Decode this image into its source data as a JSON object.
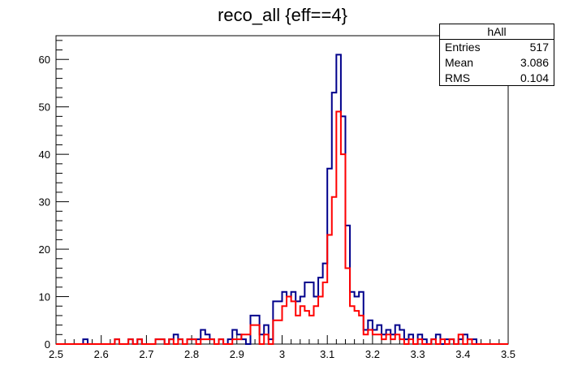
{
  "chart_data": {
    "type": "histogram",
    "title": "reco_all {eff==4}",
    "xlim": [
      2.5,
      3.5
    ],
    "ylim": [
      0,
      65
    ],
    "bin_width": 0.01,
    "x_ticks": [
      "2.5",
      "2.6",
      "2.7",
      "2.8",
      "2.9",
      "3",
      "3.1",
      "3.2",
      "3.3",
      "3.4",
      "3.5"
    ],
    "y_ticks": [
      "0",
      "10",
      "20",
      "30",
      "40",
      "50",
      "60"
    ],
    "colors": {
      "blue": "#00008b",
      "red": "#ff0000"
    },
    "series": [
      {
        "color": "#00008b",
        "bins": [
          {
            "x": 2.56,
            "y": 1
          },
          {
            "x": 2.63,
            "y": 1
          },
          {
            "x": 2.66,
            "y": 1
          },
          {
            "x": 2.68,
            "y": 1
          },
          {
            "x": 2.72,
            "y": 1
          },
          {
            "x": 2.73,
            "y": 1
          },
          {
            "x": 2.75,
            "y": 1
          },
          {
            "x": 2.76,
            "y": 2
          },
          {
            "x": 2.77,
            "y": 1
          },
          {
            "x": 2.79,
            "y": 1
          },
          {
            "x": 2.8,
            "y": 1
          },
          {
            "x": 2.81,
            "y": 1
          },
          {
            "x": 2.82,
            "y": 3
          },
          {
            "x": 2.83,
            "y": 2
          },
          {
            "x": 2.84,
            "y": 1
          },
          {
            "x": 2.86,
            "y": 1
          },
          {
            "x": 2.88,
            "y": 1
          },
          {
            "x": 2.89,
            "y": 3
          },
          {
            "x": 2.9,
            "y": 2
          },
          {
            "x": 2.91,
            "y": 1
          },
          {
            "x": 2.93,
            "y": 6
          },
          {
            "x": 2.94,
            "y": 6
          },
          {
            "x": 2.95,
            "y": 2
          },
          {
            "x": 2.96,
            "y": 4
          },
          {
            "x": 2.97,
            "y": 1
          },
          {
            "x": 2.98,
            "y": 9
          },
          {
            "x": 2.99,
            "y": 9
          },
          {
            "x": 3.0,
            "y": 11
          },
          {
            "x": 3.01,
            "y": 10
          },
          {
            "x": 3.02,
            "y": 11
          },
          {
            "x": 3.03,
            "y": 9
          },
          {
            "x": 3.04,
            "y": 10
          },
          {
            "x": 3.05,
            "y": 13
          },
          {
            "x": 3.06,
            "y": 13
          },
          {
            "x": 3.07,
            "y": 10
          },
          {
            "x": 3.08,
            "y": 14
          },
          {
            "x": 3.09,
            "y": 17
          },
          {
            "x": 3.1,
            "y": 37
          },
          {
            "x": 3.11,
            "y": 53
          },
          {
            "x": 3.12,
            "y": 61
          },
          {
            "x": 3.13,
            "y": 48
          },
          {
            "x": 3.14,
            "y": 25
          },
          {
            "x": 3.15,
            "y": 11
          },
          {
            "x": 3.16,
            "y": 10
          },
          {
            "x": 3.17,
            "y": 11
          },
          {
            "x": 3.18,
            "y": 3
          },
          {
            "x": 3.19,
            "y": 5
          },
          {
            "x": 3.2,
            "y": 3
          },
          {
            "x": 3.21,
            "y": 4
          },
          {
            "x": 3.22,
            "y": 2
          },
          {
            "x": 3.23,
            "y": 3
          },
          {
            "x": 3.24,
            "y": 2
          },
          {
            "x": 3.25,
            "y": 4
          },
          {
            "x": 3.26,
            "y": 3
          },
          {
            "x": 3.27,
            "y": 1
          },
          {
            "x": 3.28,
            "y": 2
          },
          {
            "x": 3.3,
            "y": 2
          },
          {
            "x": 3.31,
            "y": 1
          },
          {
            "x": 3.33,
            "y": 1
          },
          {
            "x": 3.34,
            "y": 2
          },
          {
            "x": 3.36,
            "y": 1
          },
          {
            "x": 3.37,
            "y": 1
          },
          {
            "x": 3.39,
            "y": 1
          },
          {
            "x": 3.4,
            "y": 2
          },
          {
            "x": 3.41,
            "y": 1
          },
          {
            "x": 3.42,
            "y": 1
          }
        ]
      },
      {
        "color": "#ff0000",
        "bins": [
          {
            "x": 2.63,
            "y": 1
          },
          {
            "x": 2.66,
            "y": 1
          },
          {
            "x": 2.68,
            "y": 1
          },
          {
            "x": 2.72,
            "y": 1
          },
          {
            "x": 2.73,
            "y": 1
          },
          {
            "x": 2.75,
            "y": 1
          },
          {
            "x": 2.77,
            "y": 1
          },
          {
            "x": 2.79,
            "y": 1
          },
          {
            "x": 2.8,
            "y": 1
          },
          {
            "x": 2.82,
            "y": 1
          },
          {
            "x": 2.83,
            "y": 1
          },
          {
            "x": 2.84,
            "y": 1
          },
          {
            "x": 2.86,
            "y": 1
          },
          {
            "x": 2.89,
            "y": 1
          },
          {
            "x": 2.9,
            "y": 1
          },
          {
            "x": 2.91,
            "y": 2
          },
          {
            "x": 2.92,
            "y": 2
          },
          {
            "x": 2.93,
            "y": 4
          },
          {
            "x": 2.94,
            "y": 4
          },
          {
            "x": 2.96,
            "y": 2
          },
          {
            "x": 2.98,
            "y": 5
          },
          {
            "x": 2.99,
            "y": 5
          },
          {
            "x": 3.0,
            "y": 8
          },
          {
            "x": 3.01,
            "y": 10
          },
          {
            "x": 3.02,
            "y": 9
          },
          {
            "x": 3.03,
            "y": 6
          },
          {
            "x": 3.04,
            "y": 8
          },
          {
            "x": 3.05,
            "y": 7
          },
          {
            "x": 3.06,
            "y": 6
          },
          {
            "x": 3.07,
            "y": 8
          },
          {
            "x": 3.08,
            "y": 10
          },
          {
            "x": 3.09,
            "y": 13
          },
          {
            "x": 3.1,
            "y": 23
          },
          {
            "x": 3.11,
            "y": 31
          },
          {
            "x": 3.12,
            "y": 49
          },
          {
            "x": 3.13,
            "y": 40
          },
          {
            "x": 3.14,
            "y": 16
          },
          {
            "x": 3.15,
            "y": 8
          },
          {
            "x": 3.16,
            "y": 7
          },
          {
            "x": 3.17,
            "y": 6
          },
          {
            "x": 3.18,
            "y": 2
          },
          {
            "x": 3.19,
            "y": 3
          },
          {
            "x": 3.2,
            "y": 2
          },
          {
            "x": 3.21,
            "y": 2
          },
          {
            "x": 3.22,
            "y": 1
          },
          {
            "x": 3.23,
            "y": 2
          },
          {
            "x": 3.24,
            "y": 1
          },
          {
            "x": 3.25,
            "y": 2
          },
          {
            "x": 3.26,
            "y": 1
          },
          {
            "x": 3.28,
            "y": 1
          },
          {
            "x": 3.3,
            "y": 1
          },
          {
            "x": 3.33,
            "y": 1
          },
          {
            "x": 3.35,
            "y": 1
          },
          {
            "x": 3.37,
            "y": 1
          },
          {
            "x": 3.39,
            "y": 2
          },
          {
            "x": 3.41,
            "y": 1
          }
        ]
      }
    ]
  },
  "stats": {
    "name": "hAll",
    "rows": [
      {
        "label": "Entries",
        "value": "517"
      },
      {
        "label": "Mean",
        "value": "3.086"
      },
      {
        "label": "RMS",
        "value": "0.104"
      }
    ]
  }
}
